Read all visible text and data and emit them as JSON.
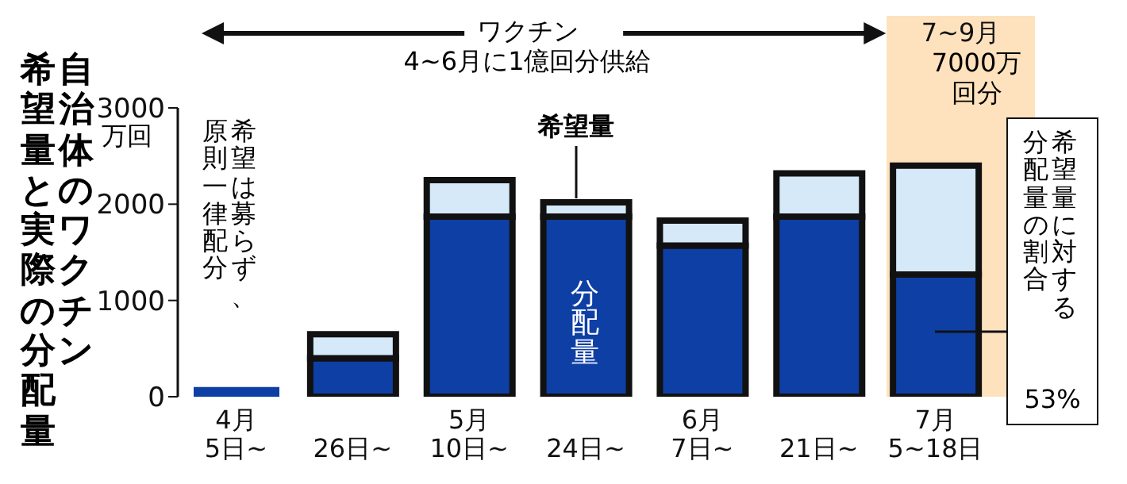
{
  "chart_data": {
    "type": "bar",
    "title": "自治体のワクチン",
    "subtitle": "希望量と実際の分配量",
    "ylabel": "万回",
    "categories": [
      "4月\n5日~",
      "26日~",
      "5月\n10日~",
      "24日~",
      "6月\n7日~",
      "21日~",
      "7月\n5~18日"
    ],
    "series": [
      {
        "name": "分配量",
        "color": "#0e3fa5",
        "values": [
          100,
          400,
          1870,
          1870,
          1570,
          1870,
          1270
        ]
      },
      {
        "name": "希望量",
        "color": "#d5e9f8",
        "values": [
          null,
          250,
          380,
          150,
          260,
          450,
          1130
        ]
      }
    ],
    "stacked": true,
    "ylim": [
      0,
      3000
    ],
    "yticks": [
      0,
      1000,
      2000,
      3000
    ],
    "grid": false,
    "legend": false,
    "bands": [
      {
        "axis": "x",
        "from": "7月\n5~18日",
        "to": "7月\n5~18日",
        "label": "7~9月",
        "color": "#fde2bd"
      }
    ],
    "annotations": [
      "ワクチン",
      "4~6月に1億回分供給",
      "希望は募らず、",
      "原則一律配分",
      "希望量に対する",
      "分配量の割合",
      "53%",
      "7000万回分"
    ]
  }
}
